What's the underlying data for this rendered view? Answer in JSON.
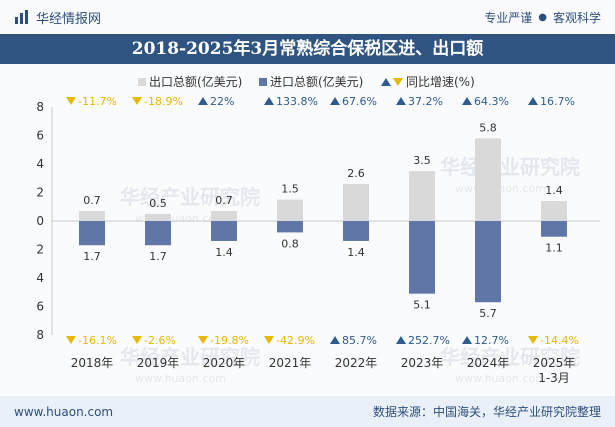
{
  "header": {
    "brand": "华经情报网",
    "slogan_left": "专业严谨",
    "slogan_dot": "●",
    "slogan_right": "客观科学"
  },
  "footer": {
    "url": "www.huaon.com",
    "source": "数据来源：中国海关，华经产业研究院整理"
  },
  "watermark": "华经产业研究院",
  "watermark_url": "www.huaon.com",
  "colors": {
    "export": "#d9d9d9",
    "import": "#5f76a6",
    "up": "#2f5c8f",
    "down": "#e8b800",
    "title_bg": "#2f5482"
  },
  "chart_data": {
    "type": "bar",
    "title": "2018-2025年3月常熟综合保税区进、出口额",
    "categories": [
      "2018年",
      "2019年",
      "2020年",
      "2021年",
      "2022年",
      "2023年",
      "2024年",
      "2025年\n1-3月"
    ],
    "series": [
      {
        "name": "出口总额(亿美元)",
        "values": [
          0.7,
          0.5,
          0.7,
          1.5,
          2.6,
          3.5,
          5.8,
          1.4
        ]
      },
      {
        "name": "进口总额(亿美元)",
        "values": [
          1.7,
          1.7,
          1.4,
          0.8,
          1.4,
          5.1,
          5.7,
          1.1
        ]
      }
    ],
    "export_yoy": [
      "-11.7%",
      "-18.9%",
      "22%",
      "133.8%",
      "67.6%",
      "37.2%",
      "64.3%",
      "16.7%"
    ],
    "import_yoy": [
      "-16.1%",
      "-2.6%",
      "-19.8%",
      "-42.9%",
      "85.7%",
      "252.7%",
      "12.7%",
      "-14.4%"
    ],
    "legend": [
      "出口总额(亿美元)",
      "进口总额(亿美元)",
      "同比增速(%)"
    ],
    "yticks": [
      "8",
      "6",
      "4",
      "2",
      "0",
      "2",
      "4",
      "6",
      "8"
    ],
    "ylim": [
      -8,
      8
    ]
  }
}
